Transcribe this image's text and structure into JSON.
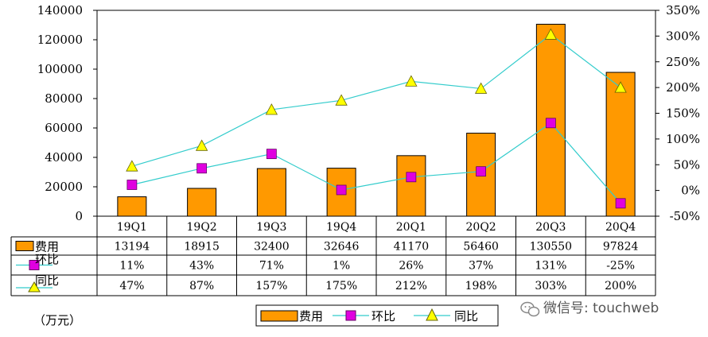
{
  "unit_label": "（万元）",
  "watermark": "微信号: touchweb",
  "colors": {
    "bar": "#FF9900",
    "hb_marker": "#E000E0",
    "tb_marker": "#FFFF00",
    "line": "#33CCCC"
  },
  "chart_data": {
    "type": "bar",
    "categories": [
      "19Q1",
      "19Q2",
      "19Q3",
      "19Q4",
      "20Q1",
      "20Q2",
      "20Q3",
      "20Q4"
    ],
    "series": [
      {
        "name": "费用",
        "type": "bar",
        "axis": "left",
        "values": [
          13194,
          18915,
          32400,
          32646,
          41170,
          56460,
          130550,
          97824
        ],
        "labels": [
          "13194",
          "18915",
          "32400",
          "32646",
          "41170",
          "56460",
          "130550",
          "97824"
        ]
      },
      {
        "name": "环比",
        "type": "line",
        "axis": "right",
        "values": [
          11,
          43,
          71,
          1,
          26,
          37,
          131,
          -25
        ],
        "labels": [
          "11%",
          "43%",
          "71%",
          "1%",
          "26%",
          "37%",
          "131%",
          "-25%"
        ]
      },
      {
        "name": "同比",
        "type": "line",
        "axis": "right",
        "values": [
          47,
          87,
          157,
          175,
          212,
          198,
          303,
          200
        ],
        "labels": [
          "47%",
          "87%",
          "157%",
          "175%",
          "212%",
          "198%",
          "303%",
          "200%"
        ]
      }
    ],
    "y_left": {
      "range": [
        0,
        140000
      ],
      "ticks": [
        "0",
        "20000",
        "40000",
        "60000",
        "80000",
        "100000",
        "120000",
        "140000"
      ]
    },
    "y_right": {
      "range": [
        -50,
        350
      ],
      "ticks": [
        "-50%",
        "0%",
        "50%",
        "100%",
        "150%",
        "200%",
        "250%",
        "300%",
        "350%"
      ]
    },
    "legend": {
      "position": "bottom",
      "items": [
        "费用",
        "环比",
        "同比"
      ]
    }
  }
}
